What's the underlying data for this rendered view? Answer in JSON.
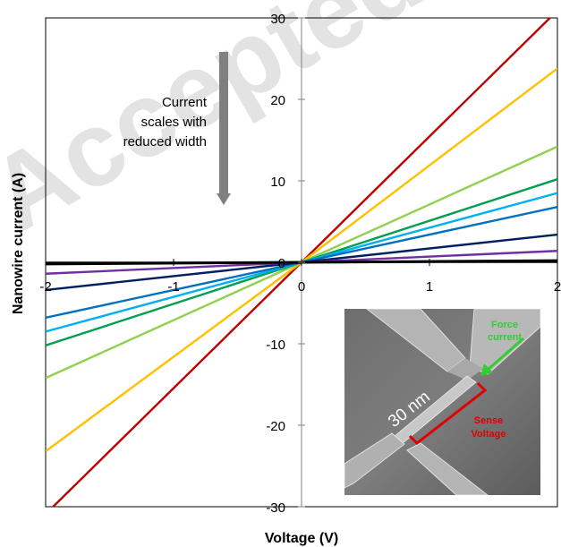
{
  "chart_data": {
    "type": "line",
    "title": "",
    "xlabel": "Voltage (V)",
    "ylabel": "Nanowire current (A)",
    "xlim": [
      -2,
      2
    ],
    "ylim": [
      -30,
      30
    ],
    "x_ticks": [
      "-2",
      "-1",
      "0",
      "1",
      "2"
    ],
    "y_ticks": [
      "-30",
      "-20",
      "-10",
      "0",
      "10",
      "20",
      "30"
    ],
    "grid": false,
    "legend": "none",
    "series": [
      {
        "color": "#c00000",
        "x": [
          -2,
          0,
          2
        ],
        "y": [
          -30.9,
          0,
          30.9
        ]
      },
      {
        "color": "#ffc000",
        "x": [
          -2,
          0,
          2
        ],
        "y": [
          -23.2,
          0,
          23.8
        ]
      },
      {
        "color": "#92d050",
        "x": [
          -2,
          0,
          2
        ],
        "y": [
          -14.2,
          0,
          14.2
        ]
      },
      {
        "color": "#00a050",
        "x": [
          -2,
          0,
          2
        ],
        "y": [
          -10.2,
          0,
          10.2
        ]
      },
      {
        "color": "#00b0f0",
        "x": [
          -2,
          0,
          2
        ],
        "y": [
          -8.5,
          0,
          8.5
        ]
      },
      {
        "color": "#0070c0",
        "x": [
          -2,
          0,
          2
        ],
        "y": [
          -6.8,
          0,
          6.8
        ]
      },
      {
        "color": "#002060",
        "x": [
          -2,
          0,
          2
        ],
        "y": [
          -3.4,
          0,
          3.4
        ]
      },
      {
        "color": "#7030a0",
        "x": [
          -2,
          0,
          2
        ],
        "y": [
          -1.4,
          0,
          1.4
        ]
      },
      {
        "color": "#000000",
        "x": [
          -2,
          0,
          2
        ],
        "y": [
          -0.2,
          0,
          0.2
        ]
      }
    ],
    "annotations": {
      "arrow_lines": [
        "Current",
        "scales with",
        "reduced width"
      ],
      "arrow_color": "#7f7f7f"
    },
    "inset": {
      "force_lines": [
        "Force",
        "current"
      ],
      "force_color": "#33cc33",
      "sense_lines": [
        "Sense",
        "Voltage"
      ],
      "sense_color": "#e00000",
      "scale_label": "30 nm"
    },
    "watermark_text": "Accepted M"
  }
}
